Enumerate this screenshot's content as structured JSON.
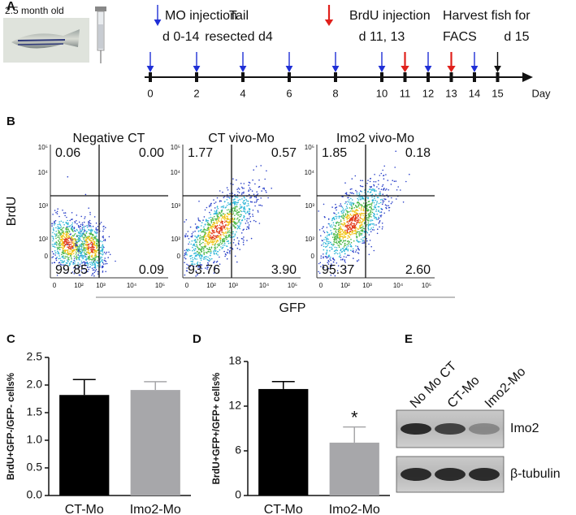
{
  "panel_labels": [
    "A",
    "B",
    "C",
    "D",
    "E"
  ],
  "panel_a": {
    "fish_label": "2.5 month old",
    "notes": [
      "MO injection",
      "d 0-14",
      "Tail",
      "resected d4",
      "BrdU injection",
      "d 11, 13",
      "Harvest fish for",
      "FACS",
      "d 15"
    ],
    "days": [
      0,
      2,
      4,
      6,
      8,
      10,
      11,
      12,
      13,
      14,
      15
    ],
    "arrow_colors": [
      "#1f2fd6",
      "#1f2fd6",
      "#1f2fd6",
      "#1f2fd6",
      "#1f2fd6",
      "#1f2fd6",
      "#e0201b",
      "#1f2fd6",
      "#e0201b",
      "#1f2fd6",
      "#111111"
    ],
    "x_label": "Day"
  },
  "panel_b": {
    "y_label": "BrdU",
    "x_label": "GFP",
    "yticks": [
      "10⁵",
      "10⁴",
      "10³",
      "10²",
      "0"
    ],
    "xticks": [
      "0",
      "10²",
      "10³",
      "10⁴",
      "10⁵"
    ],
    "plots": [
      {
        "title": "Negative CT",
        "upper_left": "0.06",
        "upper_right": "0.00",
        "lower_left": "99.85",
        "lower_right": "0.09"
      },
      {
        "title": "CT vivo-Mo",
        "upper_left": "1.77",
        "upper_right": "0.57",
        "lower_left": "93.76",
        "lower_right": "3.90"
      },
      {
        "title": "Imo2 vivo-Mo",
        "upper_left": "1.85",
        "upper_right": "0.18",
        "lower_left": "95.37",
        "lower_right": "2.60"
      }
    ]
  },
  "chart_data": [
    {
      "type": "bar",
      "y_label": "BrdU+GFP-/GFP- cells%",
      "categories": [
        "CT-Mo",
        "Imo2-Mo"
      ],
      "values": [
        1.82,
        1.91
      ],
      "errors": [
        0.28,
        0.15
      ],
      "colors": [
        "#000000",
        "#a7a7aa"
      ],
      "ylim": [
        0,
        2.5
      ],
      "yticks": [
        {
          "value": 0,
          "label": "0.0"
        },
        0.5,
        {
          "value": 1,
          "label": "1.0"
        },
        1.5,
        {
          "value": 2,
          "label": "2.0"
        },
        2.5
      ]
    },
    {
      "type": "bar",
      "y_label": "BrdU+GFP+/GFP+ cells%",
      "categories": [
        "CT-Mo",
        "Imo2-Mo"
      ],
      "values": [
        14.3,
        7.1
      ],
      "errors": [
        1.0,
        2.1
      ],
      "colors": [
        "#000000",
        "#a7a7aa"
      ],
      "ylim": [
        0,
        18
      ],
      "yticks": [
        0,
        6,
        12,
        18
      ],
      "annotation": "*"
    }
  ],
  "panel_e": {
    "lanes": [
      "No Mo CT",
      "CT-Mo",
      "Imo2-Mo"
    ],
    "bands": [
      "Imo2",
      "β-tubulin"
    ]
  }
}
